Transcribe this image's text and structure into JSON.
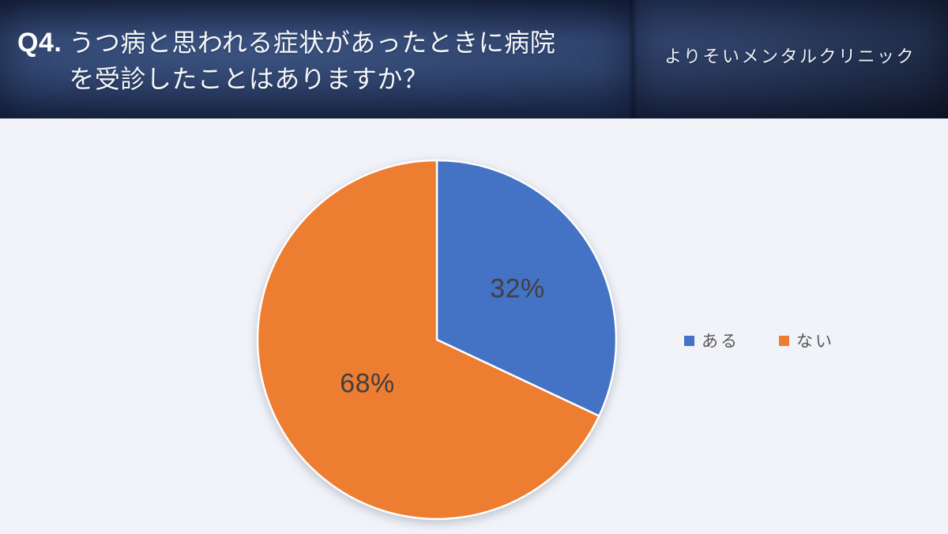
{
  "header": {
    "question_no": "Q4.",
    "question_line1": "うつ病と思われる症状があったときに病院",
    "question_line2": "を受診したことはありますか？",
    "brand": "よりそいメンタルクリニック"
  },
  "chart_data": {
    "type": "pie",
    "title": "",
    "categories": [
      "ある",
      "ない"
    ],
    "values": [
      32,
      68
    ],
    "labels": [
      "32%",
      "68%"
    ],
    "colors": [
      "#4472c4",
      "#ed7d31"
    ],
    "slice_border_color": "#ffffff",
    "label_color": "#404040",
    "legend_text_color": "#595959",
    "background": "#f1f3f9",
    "start_angle_deg": 0,
    "direction": "clockwise",
    "legend_position": "right-middle"
  }
}
